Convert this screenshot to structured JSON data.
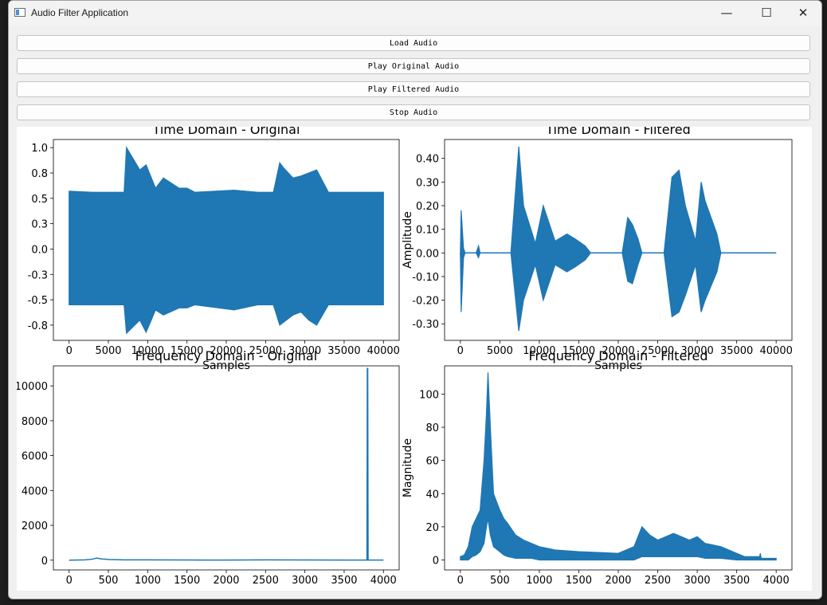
{
  "window": {
    "title": "Audio Filter Application",
    "minimize": "—",
    "maximize": "☐",
    "close": "✕"
  },
  "buttons": {
    "load": "Load Audio",
    "play_original": "Play Original Audio",
    "play_filtered": "Play Filtered Audio",
    "stop": "Stop Audio"
  },
  "colors": {
    "line": "#1f77b4",
    "background": "#ffffff",
    "window": "#f0f0f0"
  },
  "chart_data": [
    {
      "type": "line",
      "title": "Time Domain - Original",
      "xlabel": "Samples",
      "ylabel": "",
      "xlim": [
        -2000,
        42000
      ],
      "ylim": [
        -0.9,
        1.08
      ],
      "xticks": [
        0,
        5000,
        10000,
        15000,
        20000,
        25000,
        30000,
        35000,
        40000
      ],
      "yticks": [
        -0.75,
        -0.5,
        -0.25,
        0.0,
        0.25,
        0.5,
        0.75,
        1.0
      ],
      "envelope": {
        "x": [
          0,
          3000,
          7000,
          7300,
          9000,
          9800,
          11000,
          12000,
          14000,
          15000,
          16000,
          21000,
          24000,
          26000,
          26800,
          27300,
          28500,
          29500,
          30500,
          31500,
          33000,
          40000
        ],
        "ymax": [
          0.57,
          0.56,
          0.56,
          1.0,
          0.78,
          0.83,
          0.6,
          0.7,
          0.6,
          0.6,
          0.56,
          0.58,
          0.56,
          0.56,
          0.85,
          0.8,
          0.7,
          0.72,
          0.75,
          0.78,
          0.56,
          0.56
        ],
        "ymin": [
          -0.55,
          -0.55,
          -0.55,
          -0.83,
          -0.7,
          -0.82,
          -0.6,
          -0.65,
          -0.58,
          -0.58,
          -0.55,
          -0.6,
          -0.55,
          -0.55,
          -0.75,
          -0.72,
          -0.65,
          -0.62,
          -0.7,
          -0.75,
          -0.55,
          -0.55
        ]
      }
    },
    {
      "type": "line",
      "title": "Time Domain - Filtered",
      "xlabel": "Samples",
      "ylabel": "Amplitude",
      "xlim": [
        -2000,
        42000
      ],
      "ylim": [
        -0.37,
        0.48
      ],
      "xticks": [
        0,
        5000,
        10000,
        15000,
        20000,
        25000,
        30000,
        35000,
        40000
      ],
      "yticks": [
        -0.3,
        -0.2,
        -0.1,
        0.0,
        0.1,
        0.2,
        0.3,
        0.4
      ],
      "envelope": {
        "x": [
          0,
          100,
          400,
          600,
          2000,
          2300,
          2500,
          6400,
          7400,
          8000,
          9500,
          10500,
          12000,
          13500,
          14500,
          15800,
          16500,
          20500,
          21200,
          21800,
          22500,
          23000,
          25800,
          26800,
          27700,
          28500,
          29800,
          30500,
          31000,
          32500,
          33000,
          40000
        ],
        "ymax": [
          0.0,
          0.18,
          0.02,
          0.0,
          0.0,
          0.03,
          0.0,
          0.0,
          0.45,
          0.2,
          0.04,
          0.2,
          0.05,
          0.08,
          0.06,
          0.03,
          0.0,
          0.0,
          0.15,
          0.12,
          0.06,
          0.0,
          0.0,
          0.32,
          0.35,
          0.2,
          0.05,
          0.3,
          0.22,
          0.08,
          0.0,
          0.0
        ],
        "ymin": [
          0.0,
          -0.25,
          -0.02,
          0.0,
          0.0,
          -0.02,
          0.0,
          0.0,
          -0.33,
          -0.2,
          -0.05,
          -0.2,
          -0.05,
          -0.08,
          -0.06,
          -0.03,
          0.0,
          0.0,
          -0.12,
          -0.13,
          -0.05,
          0.0,
          0.0,
          -0.27,
          -0.25,
          -0.18,
          -0.05,
          -0.25,
          -0.2,
          -0.08,
          0.0,
          0.0
        ]
      }
    },
    {
      "type": "line",
      "title": "Frequency Domain - Original",
      "xlabel": "",
      "ylabel": "",
      "xlim": [
        -200,
        4200
      ],
      "ylim": [
        -560,
        11150
      ],
      "xticks": [
        0,
        500,
        1000,
        1500,
        2000,
        2500,
        3000,
        3500,
        4000
      ],
      "yticks": [
        0,
        2000,
        4000,
        6000,
        8000,
        10000
      ],
      "x": [
        0,
        200,
        300,
        350,
        400,
        500,
        700,
        1000,
        1500,
        2000,
        2500,
        3000,
        3500,
        3790,
        3795,
        3800,
        3805,
        3810,
        4000
      ],
      "y": [
        0,
        20,
        60,
        120,
        80,
        40,
        20,
        15,
        10,
        5,
        15,
        10,
        5,
        5,
        11000,
        11000,
        5,
        5,
        5
      ]
    },
    {
      "type": "line",
      "title": "Frequency Domain - Filtered",
      "xlabel": "",
      "ylabel": "Magnitude",
      "xlim": [
        -200,
        4200
      ],
      "ylim": [
        -6,
        117
      ],
      "xticks": [
        0,
        500,
        1000,
        1500,
        2000,
        2500,
        3000,
        3500,
        4000
      ],
      "yticks": [
        0,
        20,
        40,
        60,
        80,
        100
      ],
      "envelope": {
        "x": [
          0,
          50,
          100,
          150,
          200,
          250,
          300,
          330,
          350,
          380,
          420,
          500,
          550,
          600,
          700,
          800,
          900,
          1000,
          1200,
          1500,
          2000,
          2200,
          2300,
          2400,
          2500,
          2600,
          2700,
          2900,
          3000,
          3100,
          3300,
          3500,
          3600,
          3790,
          3800,
          3810,
          4000
        ],
        "ymax": [
          2,
          3,
          8,
          20,
          25,
          30,
          60,
          88,
          113,
          80,
          40,
          30,
          25,
          22,
          15,
          12,
          10,
          8,
          6,
          5,
          4,
          8,
          20,
          15,
          12,
          14,
          16,
          12,
          14,
          10,
          8,
          4,
          2,
          2,
          4,
          1,
          1
        ],
        "ymin": [
          0,
          0,
          0,
          2,
          3,
          5,
          10,
          20,
          25,
          15,
          8,
          5,
          3,
          2,
          1,
          1,
          1,
          0,
          0,
          0,
          0,
          0,
          2,
          2,
          2,
          2,
          2,
          2,
          2,
          1,
          1,
          0,
          0,
          0,
          0,
          0,
          0
        ]
      }
    }
  ]
}
